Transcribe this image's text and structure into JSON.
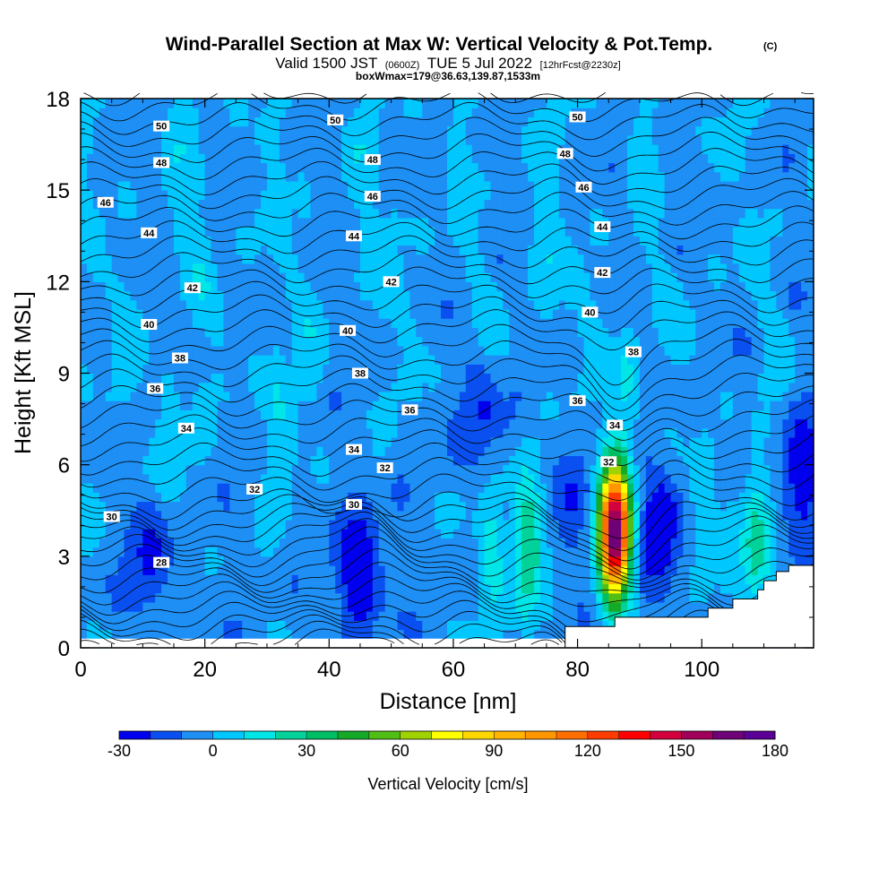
{
  "chart_data": {
    "type": "heatmap",
    "title": "Wind-Parallel Section at Max W: Vertical Velocity & Pot.Temp.",
    "title_mark": "(C)",
    "subtitle_valid": "Valid 1500 JST",
    "subtitle_zulu": "(0600Z)",
    "subtitle_date": "TUE 5 Jul 2022",
    "subtitle_fcst": "[12hrFcst@2230z]",
    "subtitle_box": "boxWmax=179@36.63,139.87,1533m",
    "xlabel": "Distance [nm]",
    "ylabel": "Height [Kft MSL]",
    "xlim": [
      0,
      118
    ],
    "ylim": [
      0,
      18
    ],
    "x_ticks": [
      "0",
      "20",
      "40",
      "60",
      "80",
      "100"
    ],
    "y_ticks": [
      "0",
      "3",
      "6",
      "9",
      "12",
      "15",
      "18"
    ],
    "colorbar": {
      "label": "Vertical Velocity [cm/s]",
      "min": -30,
      "max": 180,
      "step": 10,
      "tick_labels": [
        "-30",
        "0",
        "30",
        "60",
        "90",
        "120",
        "150",
        "180"
      ],
      "colors": [
        "#0000ee",
        "#0a50f0",
        "#1e8ff5",
        "#00c8ff",
        "#00e6e6",
        "#00d29a",
        "#00be64",
        "#14aa28",
        "#50be14",
        "#a0d200",
        "#ffff00",
        "#ffd700",
        "#ffb400",
        "#ff9600",
        "#ff6e00",
        "#ff3c00",
        "#ff0000",
        "#d2003c",
        "#a0005a",
        "#6e0078",
        "#5a0096"
      ]
    },
    "background_value": -5,
    "grid": false,
    "updrafts": [
      {
        "x": 86,
        "z": 3.8,
        "peak": 179
      },
      {
        "x": 72,
        "z": 3.5,
        "peak": 40
      },
      {
        "x": 66,
        "z": 3.2,
        "peak": 20
      },
      {
        "x": 109,
        "z": 3.5,
        "peak": 30
      },
      {
        "x": 100,
        "z": 4.5,
        "peak": 15
      },
      {
        "x": 14,
        "z": 7.0,
        "peak": 15
      },
      {
        "x": 32,
        "z": 7.3,
        "peak": 18
      },
      {
        "x": 88,
        "z": 8.5,
        "peak": 15
      },
      {
        "x": 20,
        "z": 14.0,
        "peak": 8
      },
      {
        "x": 50,
        "z": 14.0,
        "peak": 8
      },
      {
        "x": 75,
        "z": 12.5,
        "peak": 8
      }
    ],
    "downdrafts": [
      {
        "x": 45,
        "z": 2.5,
        "peak": -35
      },
      {
        "x": 93,
        "z": 4.0,
        "peak": -30
      },
      {
        "x": 116,
        "z": 5.5,
        "peak": -25
      },
      {
        "x": 11,
        "z": 3.0,
        "peak": -18
      },
      {
        "x": 78,
        "z": 4.5,
        "peak": -15
      },
      {
        "x": 65,
        "z": 7.5,
        "peak": -20
      }
    ],
    "terrain": {
      "x": [
        78,
        86,
        86,
        101,
        101,
        105,
        105,
        109,
        109,
        110,
        110,
        112,
        112,
        114,
        114,
        118
      ],
      "z": [
        0.7,
        0.7,
        1.0,
        1.0,
        1.3,
        1.3,
        1.6,
        1.6,
        1.9,
        1.9,
        2.2,
        2.2,
        2.5,
        2.5,
        2.7,
        2.7
      ]
    },
    "theta_levels": [
      28,
      30,
      32,
      34,
      36,
      38,
      40,
      42,
      44,
      46,
      48,
      50
    ],
    "theta_labels": [
      {
        "text": "50",
        "x": 13,
        "z": 17.1
      },
      {
        "text": "50",
        "x": 41,
        "z": 17.3
      },
      {
        "text": "50",
        "x": 80,
        "z": 17.4
      },
      {
        "text": "48",
        "x": 13,
        "z": 15.9
      },
      {
        "text": "48",
        "x": 47,
        "z": 16.0
      },
      {
        "text": "48",
        "x": 78,
        "z": 16.2
      },
      {
        "text": "46",
        "x": 4,
        "z": 14.6
      },
      {
        "text": "46",
        "x": 47,
        "z": 14.8
      },
      {
        "text": "46",
        "x": 81,
        "z": 15.1
      },
      {
        "text": "44",
        "x": 11,
        "z": 13.6
      },
      {
        "text": "44",
        "x": 44,
        "z": 13.5
      },
      {
        "text": "44",
        "x": 84,
        "z": 13.8
      },
      {
        "text": "42",
        "x": 18,
        "z": 11.8
      },
      {
        "text": "42",
        "x": 50,
        "z": 12.0
      },
      {
        "text": "42",
        "x": 84,
        "z": 12.3
      },
      {
        "text": "40",
        "x": 11,
        "z": 10.6
      },
      {
        "text": "40",
        "x": 43,
        "z": 10.4
      },
      {
        "text": "40",
        "x": 82,
        "z": 11.0
      },
      {
        "text": "38",
        "x": 16,
        "z": 9.5
      },
      {
        "text": "38",
        "x": 45,
        "z": 9.0
      },
      {
        "text": "38",
        "x": 89,
        "z": 9.7
      },
      {
        "text": "36",
        "x": 12,
        "z": 8.5
      },
      {
        "text": "36",
        "x": 53,
        "z": 7.8
      },
      {
        "text": "36",
        "x": 80,
        "z": 8.1
      },
      {
        "text": "34",
        "x": 17,
        "z": 7.2
      },
      {
        "text": "34",
        "x": 44,
        "z": 6.5
      },
      {
        "text": "34",
        "x": 86,
        "z": 7.3
      },
      {
        "text": "32",
        "x": 28,
        "z": 5.2
      },
      {
        "text": "32",
        "x": 49,
        "z": 5.9
      },
      {
        "text": "32",
        "x": 85,
        "z": 6.1
      },
      {
        "text": "30",
        "x": 5,
        "z": 4.3
      },
      {
        "text": "30",
        "x": 44,
        "z": 4.7
      },
      {
        "text": "28",
        "x": 13,
        "z": 2.8
      }
    ]
  }
}
